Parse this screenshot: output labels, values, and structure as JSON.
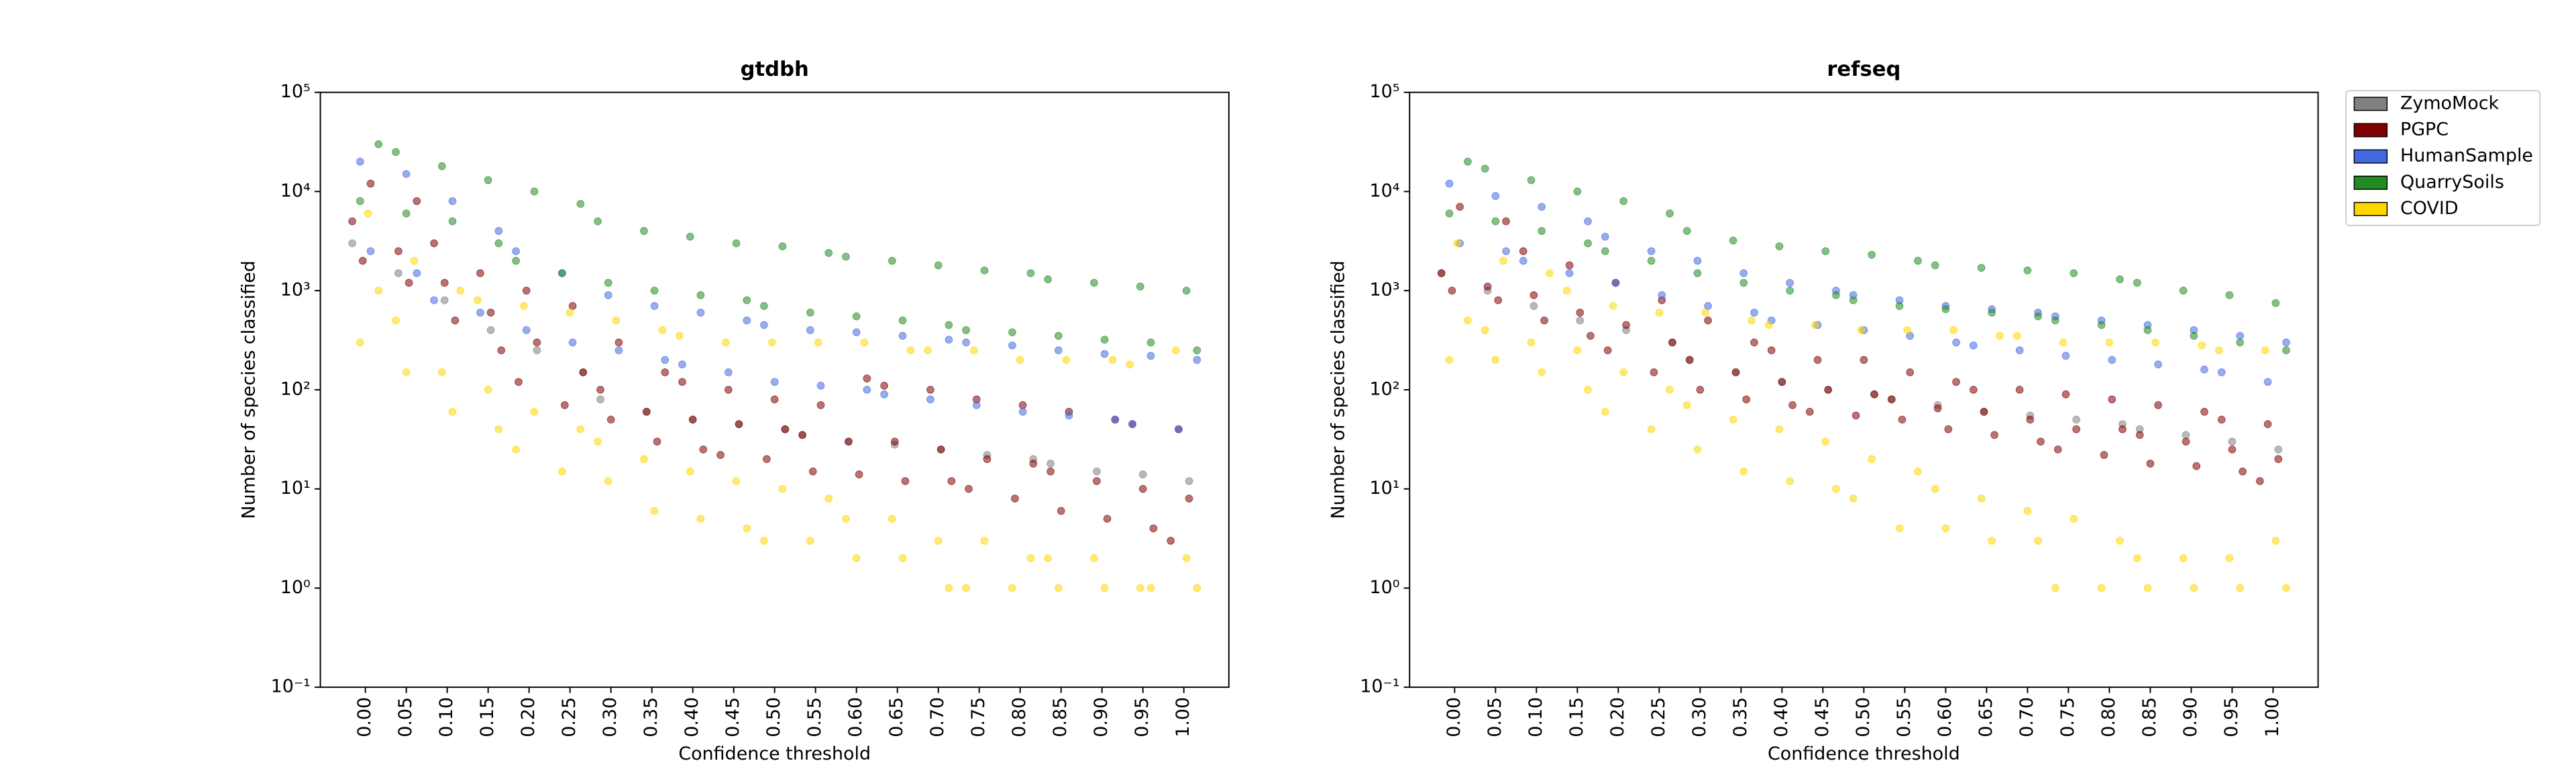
{
  "chart_data": [
    {
      "type": "strip",
      "title": "gtdbh",
      "x_label": "Confidence threshold",
      "y_label": "Number of species classified",
      "log_scale": true,
      "legend": false,
      "ylim": [
        0.1,
        100000
      ],
      "yticks": [
        {
          "value": 0.1,
          "label": "10⁻¹"
        },
        {
          "value": 1,
          "label": "10⁰"
        },
        {
          "value": 10,
          "label": "10¹"
        },
        {
          "value": 100,
          "label": "10²"
        },
        {
          "value": 1000,
          "label": "10³"
        },
        {
          "value": 10000,
          "label": "10⁴"
        },
        {
          "value": 100000,
          "label": "10⁵"
        }
      ],
      "categories": [
        "0.00",
        "0.05",
        "0.10",
        "0.15",
        "0.20",
        "0.25",
        "0.30",
        "0.35",
        "0.40",
        "0.45",
        "0.50",
        "0.55",
        "0.60",
        "0.65",
        "0.70",
        "0.75",
        "0.80",
        "0.85",
        "0.90",
        "0.95",
        "1.00"
      ],
      "series": [
        {
          "name": "ZymoMock",
          "color": "#808080",
          "values": [
            [
              3000
            ],
            [
              1500
            ],
            [
              800
            ],
            [
              400
            ],
            [
              250
            ],
            [
              150
            ],
            [
              80
            ],
            [
              60
            ],
            [
              50
            ],
            [
              45
            ],
            [
              40
            ],
            [
              35
            ],
            [
              30
            ],
            [
              28
            ],
            [
              25
            ],
            [
              22
            ],
            [
              20
            ],
            [
              18
            ],
            [
              15
            ],
            [
              14
            ],
            [
              12
            ]
          ]
        },
        {
          "name": "PGPC",
          "color": "#800000",
          "values": [
            [
              12000,
              5000,
              2000
            ],
            [
              8000,
              2500,
              1200
            ],
            [
              3000,
              1200,
              500
            ],
            [
              1500,
              600,
              250
            ],
            [
              1000,
              300,
              120
            ],
            [
              700,
              150,
              70
            ],
            [
              300,
              100,
              50
            ],
            [
              150,
              60,
              30
            ],
            [
              120,
              50,
              25
            ],
            [
              100,
              45,
              22
            ],
            [
              80,
              40,
              20
            ],
            [
              70,
              35,
              15
            ],
            [
              130,
              30,
              14
            ],
            [
              110,
              30,
              12
            ],
            [
              100,
              25,
              12
            ],
            [
              80,
              20,
              10
            ],
            [
              70,
              18,
              8
            ],
            [
              60,
              15,
              6
            ],
            [
              50,
              12,
              5
            ],
            [
              45,
              10,
              4
            ],
            [
              40,
              8,
              3
            ]
          ]
        },
        {
          "name": "HumanSample",
          "color": "#4169e1",
          "values": [
            [
              20000,
              2500
            ],
            [
              15000,
              1500
            ],
            [
              8000,
              800
            ],
            [
              4000,
              600
            ],
            [
              2500,
              400
            ],
            [
              1500,
              300
            ],
            [
              900,
              250
            ],
            [
              700,
              200
            ],
            [
              600,
              180
            ],
            [
              500,
              150
            ],
            [
              450,
              120
            ],
            [
              400,
              110
            ],
            [
              380,
              100
            ],
            [
              350,
              90
            ],
            [
              320,
              80
            ],
            [
              300,
              70
            ],
            [
              280,
              60
            ],
            [
              250,
              55
            ],
            [
              230,
              50
            ],
            [
              220,
              45
            ],
            [
              200,
              40
            ]
          ]
        },
        {
          "name": "QuarrySoils",
          "color": "#228b22",
          "values": [
            [
              30000,
              8000
            ],
            [
              25000,
              6000
            ],
            [
              18000,
              5000
            ],
            [
              13000,
              3000
            ],
            [
              10000,
              2000
            ],
            [
              7500,
              1500
            ],
            [
              5000,
              1200
            ],
            [
              4000,
              1000
            ],
            [
              3500,
              900
            ],
            [
              3000,
              800
            ],
            [
              2800,
              700
            ],
            [
              2400,
              600
            ],
            [
              2200,
              550
            ],
            [
              2000,
              500
            ],
            [
              1800,
              450
            ],
            [
              1600,
              400
            ],
            [
              1500,
              380
            ],
            [
              1300,
              350
            ],
            [
              1200,
              320
            ],
            [
              1100,
              300
            ],
            [
              1000,
              250
            ]
          ]
        },
        {
          "name": "COVID",
          "color": "#ffd700",
          "values": [
            [
              6000,
              1000,
              300
            ],
            [
              2000,
              500,
              150
            ],
            [
              1000,
              150,
              60
            ],
            [
              800,
              100,
              40
            ],
            [
              700,
              60,
              25
            ],
            [
              600,
              40,
              15
            ],
            [
              500,
              30,
              12
            ],
            [
              400,
              20,
              6
            ],
            [
              350,
              15,
              5
            ],
            [
              300,
              12,
              4
            ],
            [
              300,
              10,
              3
            ],
            [
              300,
              8,
              3
            ],
            [
              300,
              5,
              2
            ],
            [
              250,
              5,
              2
            ],
            [
              250,
              3,
              1
            ],
            [
              250,
              3,
              1
            ],
            [
              200,
              2,
              1
            ],
            [
              200,
              2,
              1
            ],
            [
              200,
              2,
              1
            ],
            [
              180,
              1,
              1
            ],
            [
              250,
              2,
              1
            ]
          ]
        }
      ]
    },
    {
      "type": "strip",
      "title": "refseq",
      "x_label": "Confidence threshold",
      "y_label": "Number of species classified",
      "log_scale": true,
      "legend": "outside right",
      "ylim": [
        0.1,
        100000
      ],
      "yticks": [
        {
          "value": 0.1,
          "label": "10⁻¹"
        },
        {
          "value": 1,
          "label": "10⁰"
        },
        {
          "value": 10,
          "label": "10¹"
        },
        {
          "value": 100,
          "label": "10²"
        },
        {
          "value": 1000,
          "label": "10³"
        },
        {
          "value": 10000,
          "label": "10⁴"
        },
        {
          "value": 100000,
          "label": "10⁵"
        }
      ],
      "categories": [
        "0.00",
        "0.05",
        "0.10",
        "0.15",
        "0.20",
        "0.25",
        "0.30",
        "0.35",
        "0.40",
        "0.45",
        "0.50",
        "0.55",
        "0.60",
        "0.65",
        "0.70",
        "0.75",
        "0.80",
        "0.85",
        "0.90",
        "0.95",
        "1.00"
      ],
      "series": [
        {
          "name": "ZymoMock",
          "color": "#808080",
          "values": [
            [
              1500
            ],
            [
              1000
            ],
            [
              700
            ],
            [
              500
            ],
            [
              400
            ],
            [
              300
            ],
            [
              200
            ],
            [
              150
            ],
            [
              120
            ],
            [
              100
            ],
            [
              90
            ],
            [
              80
            ],
            [
              70
            ],
            [
              60
            ],
            [
              55
            ],
            [
              50
            ],
            [
              45
            ],
            [
              40
            ],
            [
              35
            ],
            [
              30
            ],
            [
              25
            ]
          ]
        },
        {
          "name": "PGPC",
          "color": "#800000",
          "values": [
            [
              7000,
              1500,
              1000
            ],
            [
              5000,
              1100,
              800
            ],
            [
              2500,
              900,
              500
            ],
            [
              1800,
              600,
              350
            ],
            [
              1200,
              450,
              250
            ],
            [
              800,
              300,
              150
            ],
            [
              500,
              200,
              100
            ],
            [
              300,
              150,
              80
            ],
            [
              250,
              120,
              70
            ],
            [
              200,
              100,
              60
            ],
            [
              200,
              90,
              55
            ],
            [
              150,
              80,
              50
            ],
            [
              120,
              65,
              40
            ],
            [
              100,
              60,
              35
            ],
            [
              100,
              50,
              30
            ],
            [
              90,
              40,
              25
            ],
            [
              80,
              40,
              22
            ],
            [
              70,
              35,
              18
            ],
            [
              60,
              30,
              17
            ],
            [
              50,
              25,
              15
            ],
            [
              45,
              20,
              12
            ]
          ]
        },
        {
          "name": "HumanSample",
          "color": "#4169e1",
          "values": [
            [
              12000,
              3000
            ],
            [
              9000,
              2500
            ],
            [
              7000,
              2000
            ],
            [
              5000,
              1500
            ],
            [
              3500,
              1200
            ],
            [
              2500,
              900
            ],
            [
              2000,
              700
            ],
            [
              1500,
              600
            ],
            [
              1200,
              500
            ],
            [
              1000,
              450
            ],
            [
              900,
              400
            ],
            [
              800,
              350
            ],
            [
              700,
              300
            ],
            [
              650,
              280
            ],
            [
              600,
              250
            ],
            [
              550,
              220
            ],
            [
              500,
              200
            ],
            [
              450,
              180
            ],
            [
              400,
              160
            ],
            [
              350,
              150
            ],
            [
              300,
              120
            ]
          ]
        },
        {
          "name": "QuarrySoils",
          "color": "#228b22",
          "values": [
            [
              20000,
              6000
            ],
            [
              17000,
              5000
            ],
            [
              13000,
              4000
            ],
            [
              10000,
              3000
            ],
            [
              8000,
              2500
            ],
            [
              6000,
              2000
            ],
            [
              4000,
              1500
            ],
            [
              3200,
              1200
            ],
            [
              2800,
              1000
            ],
            [
              2500,
              900
            ],
            [
              2300,
              800
            ],
            [
              2000,
              700
            ],
            [
              1800,
              650
            ],
            [
              1700,
              600
            ],
            [
              1600,
              550
            ],
            [
              1500,
              500
            ],
            [
              1300,
              450
            ],
            [
              1200,
              400
            ],
            [
              1000,
              350
            ],
            [
              900,
              300
            ],
            [
              750,
              250
            ]
          ]
        },
        {
          "name": "COVID",
          "color": "#ffd700",
          "values": [
            [
              3000,
              500,
              200
            ],
            [
              2000,
              400,
              200
            ],
            [
              1500,
              300,
              150
            ],
            [
              1000,
              250,
              100
            ],
            [
              700,
              150,
              60
            ],
            [
              600,
              100,
              40
            ],
            [
              600,
              70,
              25
            ],
            [
              500,
              50,
              15
            ],
            [
              450,
              40,
              12
            ],
            [
              450,
              30,
              10
            ],
            [
              400,
              20,
              8
            ],
            [
              400,
              15,
              4
            ],
            [
              400,
              10,
              4
            ],
            [
              350,
              8,
              3
            ],
            [
              350,
              6,
              3
            ],
            [
              300,
              5,
              1
            ],
            [
              300,
              3,
              1
            ],
            [
              300,
              2,
              1
            ],
            [
              280,
              2,
              1
            ],
            [
              250,
              2,
              1
            ],
            [
              250,
              3,
              1
            ]
          ]
        }
      ]
    }
  ]
}
